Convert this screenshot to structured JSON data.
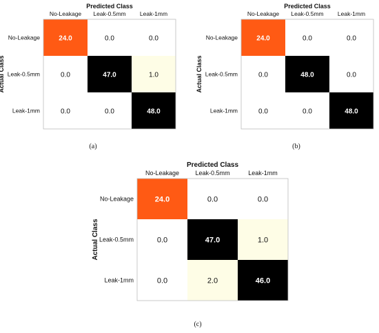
{
  "chart_data": [
    {
      "type": "heatmap",
      "panel_label": "(a)",
      "title": "Predicted Class",
      "ylabel": "Actual Class",
      "x_categories": [
        "No-Leakage",
        "Leak-0.5mm",
        "Leak-1mm"
      ],
      "y_categories": [
        "No-Leakage",
        "Leak-0.5mm",
        "Leak-1mm"
      ],
      "values": [
        [
          24.0,
          0.0,
          0.0
        ],
        [
          0.0,
          47.0,
          1.0
        ],
        [
          0.0,
          0.0,
          48.0
        ]
      ],
      "cell_text": [
        [
          "24.0",
          "0.0",
          "0.0"
        ],
        [
          "0.0",
          "47.0",
          "1.0"
        ],
        [
          "0.0",
          "0.0",
          "48.0"
        ]
      ]
    },
    {
      "type": "heatmap",
      "panel_label": "(b)",
      "title": "Predicted Class",
      "ylabel": "Actual Class",
      "x_categories": [
        "No-Leakage",
        "Leak-0.5mm",
        "Leak-1mm"
      ],
      "y_categories": [
        "No-Leakage",
        "Leak-0.5mm",
        "Leak-1mm"
      ],
      "values": [
        [
          24.0,
          0.0,
          0.0
        ],
        [
          0.0,
          48.0,
          0.0
        ],
        [
          0.0,
          0.0,
          48.0
        ]
      ],
      "cell_text": [
        [
          "24.0",
          "0.0",
          "0.0"
        ],
        [
          "0.0",
          "48.0",
          "0.0"
        ],
        [
          "0.0",
          "0.0",
          "48.0"
        ]
      ]
    },
    {
      "type": "heatmap",
      "panel_label": "(c)",
      "title": "Predicted Class",
      "ylabel": "Actual Class",
      "x_categories": [
        "No-Leakage",
        "Leak-0.5mm",
        "Leak-1mm"
      ],
      "y_categories": [
        "No-Leakage",
        "Leak-0.5mm",
        "Leak-1mm"
      ],
      "values": [
        [
          24.0,
          0.0,
          0.0
        ],
        [
          0.0,
          47.0,
          1.0
        ],
        [
          0.0,
          2.0,
          46.0
        ]
      ],
      "cell_text": [
        [
          "24.0",
          "0.0",
          "0.0"
        ],
        [
          "0.0",
          "47.0",
          "1.0"
        ],
        [
          "0.0",
          "2.0",
          "46.0"
        ]
      ]
    }
  ],
  "colors": {
    "diag_low": "#ff5a14",
    "high": "#000000",
    "low_nonzero": "#fefde6",
    "zero": "#ffffff",
    "light_text": "#ffffff",
    "dark_text": "#111111"
  }
}
